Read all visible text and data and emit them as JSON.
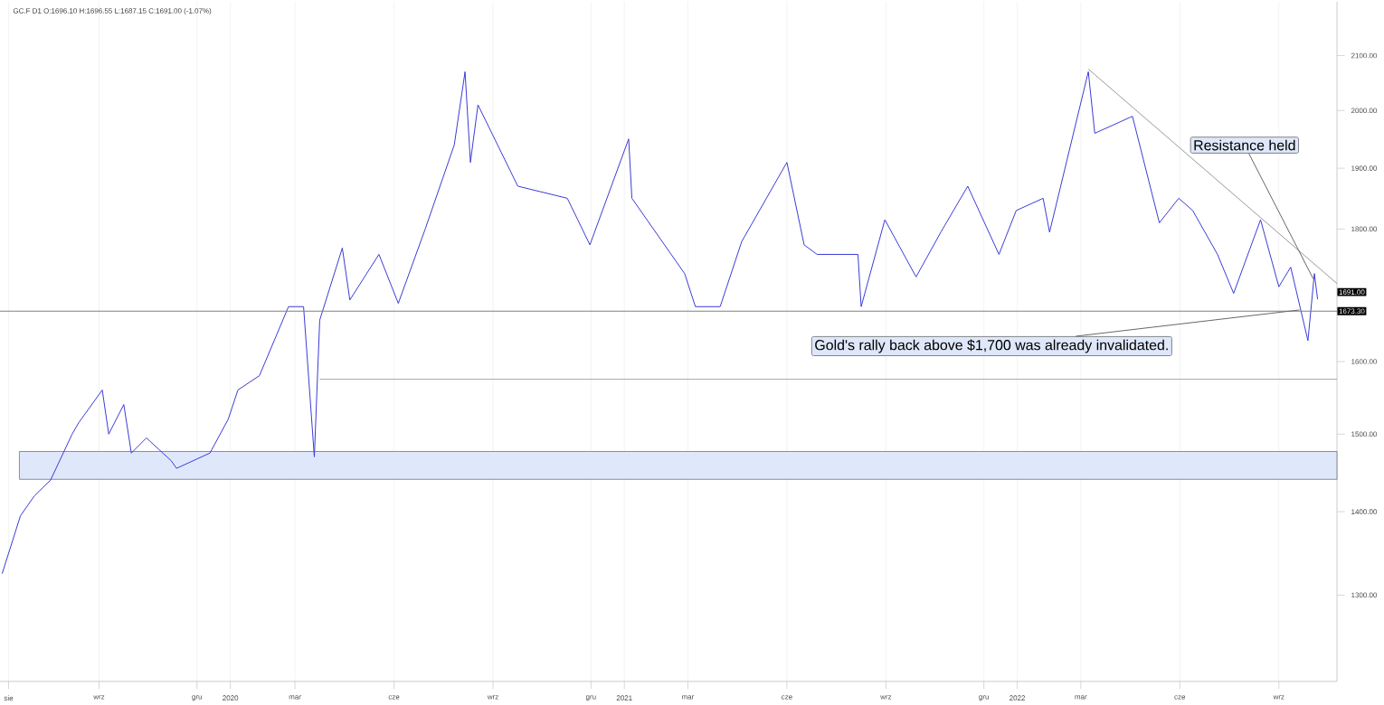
{
  "chart_data": {
    "type": "line",
    "title": "GC.F D1 O:1696.10 H:1696.55 L:1687.15 C:1691.00 (-1.07%)",
    "log": "y",
    "grid": "x",
    "xlim": [
      "2019-06-01",
      "2022-10-25"
    ],
    "ylim": [
      1204,
      2203
    ],
    "xticks": [
      {
        "value": "2019-06-09",
        "label": "sie"
      },
      {
        "value": "2019-09-01",
        "label": "wrz"
      },
      {
        "value": "2019-12-01",
        "label": "gru"
      },
      {
        "value": "2020-01-01",
        "label": "2020"
      },
      {
        "value": "2020-03-01",
        "label": "mar"
      },
      {
        "value": "2020-06-01",
        "label": "cze"
      },
      {
        "value": "2020-09-01",
        "label": "wrz"
      },
      {
        "value": "2020-12-01",
        "label": "gru"
      },
      {
        "value": "2021-01-01",
        "label": "2021"
      },
      {
        "value": "2021-03-01",
        "label": "mar"
      },
      {
        "value": "2021-06-01",
        "label": "cze"
      },
      {
        "value": "2021-09-01",
        "label": "wrz"
      },
      {
        "value": "2021-12-01",
        "label": "gru"
      },
      {
        "value": "2022-01-01",
        "label": "2022"
      },
      {
        "value": "2022-03-01",
        "label": "mar"
      },
      {
        "value": "2022-06-01",
        "label": "cze"
      },
      {
        "value": "2022-09-01",
        "label": "wrz"
      }
    ],
    "yticks": [
      {
        "value": 1300,
        "label": "1300.00"
      },
      {
        "value": 1400,
        "label": "1400.00"
      },
      {
        "value": 1500,
        "label": "1500.00"
      },
      {
        "value": 1600,
        "label": "1600.00"
      },
      {
        "value": 1800,
        "label": "1800.00"
      },
      {
        "value": 1900,
        "label": "1900.00"
      },
      {
        "value": 2000,
        "label": "2000.00"
      },
      {
        "value": 2100,
        "label": "2100.00"
      }
    ],
    "series": [
      {
        "color": "#3b3bd6",
        "x": [
          "2019-06-03",
          "2019-06-20",
          "2019-07-03",
          "2019-07-18",
          "2019-08-07",
          "2019-08-13",
          "2019-09-04",
          "2019-09-10",
          "2019-09-24",
          "2019-10-01",
          "2019-10-15",
          "2019-11-07",
          "2019-11-12",
          "2019-12-13",
          "2019-12-30",
          "2020-01-08",
          "2020-01-28",
          "2020-02-24",
          "2020-03-09",
          "2020-03-19",
          "2020-03-24",
          "2020-04-14",
          "2020-04-21",
          "2020-05-18",
          "2020-06-05",
          "2020-06-30",
          "2020-07-27",
          "2020-08-06",
          "2020-08-11",
          "2020-08-18",
          "2020-09-24",
          "2020-11-09",
          "2020-11-30",
          "2021-01-05",
          "2021-01-08",
          "2021-02-26",
          "2021-03-08",
          "2021-03-31",
          "2021-04-20",
          "2021-06-01",
          "2021-06-17",
          "2021-06-29",
          "2021-08-06",
          "2021-08-09",
          "2021-08-31",
          "2021-09-29",
          "2021-10-22",
          "2021-11-16",
          "2021-12-15",
          "2021-12-31",
          "2022-01-25",
          "2022-01-31",
          "2022-03-08",
          "2022-03-14",
          "2022-04-18",
          "2022-05-13",
          "2022-05-31",
          "2022-06-13",
          "2022-07-06",
          "2022-07-21",
          "2022-08-15",
          "2022-09-01",
          "2022-09-12",
          "2022-09-28",
          "2022-10-04",
          "2022-10-07"
        ],
        "values": [
          1325,
          1395,
          1420,
          1440,
          1500,
          1515,
          1560,
          1500,
          1540,
          1475,
          1495,
          1465,
          1455,
          1475,
          1520,
          1560,
          1580,
          1680,
          1680,
          1470,
          1660,
          1770,
          1690,
          1760,
          1685,
          1800,
          1940,
          2070,
          1910,
          2010,
          1870,
          1850,
          1775,
          1950,
          1850,
          1730,
          1680,
          1680,
          1780,
          1910,
          1775,
          1760,
          1760,
          1680,
          1815,
          1725,
          1795,
          1870,
          1760,
          1830,
          1850,
          1795,
          2070,
          1960,
          1990,
          1810,
          1850,
          1830,
          1760,
          1700,
          1815,
          1710,
          1740,
          1630,
          1730,
          1691
        ]
      },
      {
        "color": "#808080",
        "x": [
          "2022-03-08",
          "2022-10-25"
        ],
        "values": [
          2075,
          1715
        ]
      },
      {
        "color": "#909090",
        "x": [
          "2020-03-24",
          "2022-10-25"
        ],
        "values": [
          1575,
          1575
        ]
      }
    ],
    "ref_lines": [
      {
        "axis": "y",
        "value": 1673.3,
        "label": "1673.30",
        "color": "#808080"
      }
    ],
    "bands": [
      {
        "axis": "y",
        "from": 1441,
        "to": 1477,
        "color": "#dfe8fa"
      }
    ],
    "annotations": [
      {
        "text": "Resistance held",
        "x": "2022-10-03",
        "y": 1722
      },
      {
        "text": "Gold's rally back above $1,700 was already invalidated.",
        "x": "2022-09-20",
        "y": 1675
      },
      "1691.00"
    ]
  }
}
